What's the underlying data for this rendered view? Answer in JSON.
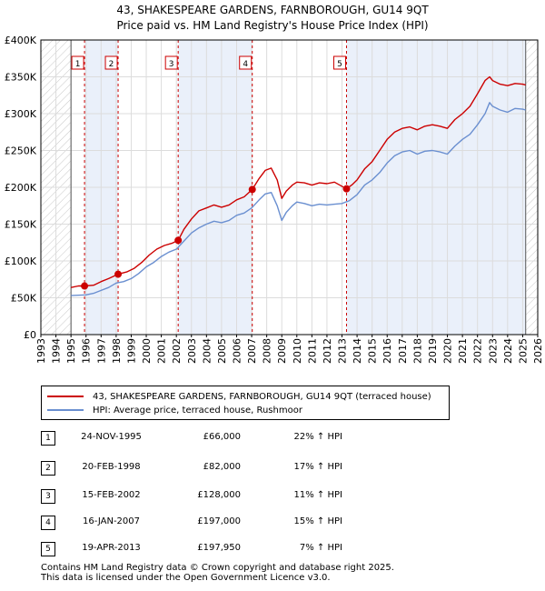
{
  "chart_data": {
    "type": "line",
    "title": "43, SHAKESPEARE GARDENS, FARNBOROUGH, GU14 9QT",
    "subtitle": "Price paid vs. HM Land Registry's House Price Index (HPI)",
    "xlim": [
      1993,
      2026
    ],
    "ylim": [
      0,
      400000
    ],
    "x_ticks": [
      1993,
      1994,
      1995,
      1996,
      1997,
      1998,
      1999,
      2000,
      2001,
      2002,
      2003,
      2004,
      2005,
      2006,
      2007,
      2008,
      2009,
      2010,
      2011,
      2012,
      2013,
      2014,
      2015,
      2016,
      2017,
      2018,
      2019,
      2020,
      2021,
      2022,
      2023,
      2024,
      2025,
      2026
    ],
    "y_ticks": [
      {
        "value": 0,
        "label": "£0"
      },
      {
        "value": 50000,
        "label": "£50K"
      },
      {
        "value": 100000,
        "label": "£100K"
      },
      {
        "value": 150000,
        "label": "£150K"
      },
      {
        "value": 200000,
        "label": "£200K"
      },
      {
        "value": 250000,
        "label": "£250K"
      },
      {
        "value": 300000,
        "label": "£300K"
      },
      {
        "value": 350000,
        "label": "£350K"
      },
      {
        "value": 400000,
        "label": "£400K"
      }
    ],
    "data_start": 1995.0,
    "data_end": 2025.2,
    "series": [
      {
        "name": "43, SHAKESPEARE GARDENS, FARNBOROUGH, GU14 9QT (terraced house)",
        "color": "#cc0000",
        "x": [
          1995.0,
          1995.5,
          1995.9,
          1996.5,
          1997.0,
          1997.5,
          1998.13,
          1998.7,
          1999.2,
          1999.7,
          2000.2,
          2000.7,
          2001.2,
          2001.7,
          2002.12,
          2002.5,
          2003.0,
          2003.5,
          2004.0,
          2004.5,
          2005.0,
          2005.5,
          2006.0,
          2006.5,
          2007.04,
          2007.5,
          2007.9,
          2008.3,
          2008.7,
          2009.0,
          2009.3,
          2009.7,
          2010.0,
          2010.5,
          2011.0,
          2011.5,
          2012.0,
          2012.5,
          2013.3,
          2013.7,
          2014.0,
          2014.5,
          2015.0,
          2015.5,
          2016.0,
          2016.5,
          2017.0,
          2017.5,
          2018.0,
          2018.5,
          2019.0,
          2019.5,
          2020.0,
          2020.5,
          2021.0,
          2021.5,
          2022.0,
          2022.5,
          2022.8,
          2023.0,
          2023.5,
          2024.0,
          2024.5,
          2025.0,
          2025.2
        ],
        "values": [
          64000,
          66000,
          66000,
          67000,
          72000,
          76000,
          82000,
          85000,
          90000,
          98000,
          108000,
          116000,
          121000,
          124000,
          128000,
          143000,
          157000,
          168000,
          172000,
          176000,
          173000,
          176000,
          183000,
          187000,
          197000,
          212000,
          223000,
          226000,
          210000,
          185000,
          195000,
          203000,
          207000,
          206000,
          203000,
          206000,
          205000,
          207000,
          197950,
          204000,
          210000,
          225000,
          235000,
          250000,
          265000,
          275000,
          280000,
          282000,
          278000,
          283000,
          285000,
          283000,
          280000,
          292000,
          300000,
          310000,
          327000,
          345000,
          350000,
          345000,
          340000,
          338000,
          341000,
          340000,
          339000
        ]
      },
      {
        "name": "HPI: Average price, terraced house, Rushmoor",
        "color": "#6a8fd0",
        "x": [
          1995.0,
          1995.5,
          1996.0,
          1996.5,
          1997.0,
          1997.5,
          1998.0,
          1998.5,
          1999.0,
          1999.5,
          2000.0,
          2000.5,
          2001.0,
          2001.5,
          2002.0,
          2002.5,
          2003.0,
          2003.5,
          2004.0,
          2004.5,
          2005.0,
          2005.5,
          2006.0,
          2006.5,
          2007.0,
          2007.5,
          2007.9,
          2008.3,
          2008.7,
          2009.0,
          2009.3,
          2009.7,
          2010.0,
          2010.5,
          2011.0,
          2011.5,
          2012.0,
          2012.5,
          2013.0,
          2013.5,
          2014.0,
          2014.5,
          2015.0,
          2015.5,
          2016.0,
          2016.5,
          2017.0,
          2017.5,
          2018.0,
          2018.5,
          2019.0,
          2019.5,
          2020.0,
          2020.5,
          2021.0,
          2021.5,
          2022.0,
          2022.5,
          2022.8,
          2023.0,
          2023.5,
          2024.0,
          2024.5,
          2025.0,
          2025.2
        ],
        "values": [
          53000,
          53500,
          54000,
          56000,
          60000,
          64000,
          70000,
          72000,
          76000,
          83000,
          92000,
          98000,
          106000,
          112000,
          116000,
          127000,
          138000,
          145000,
          150000,
          154000,
          152000,
          155000,
          162000,
          165000,
          172000,
          183000,
          191000,
          193000,
          175000,
          155000,
          166000,
          175000,
          180000,
          178000,
          175000,
          177000,
          176000,
          177000,
          178000,
          182000,
          190000,
          203000,
          210000,
          220000,
          233000,
          243000,
          248000,
          250000,
          245000,
          249000,
          250000,
          248000,
          245000,
          256000,
          265000,
          272000,
          285000,
          300000,
          315000,
          310000,
          305000,
          302000,
          307000,
          306000,
          305000
        ]
      }
    ],
    "sales": [
      {
        "num": "1",
        "x": 1995.9,
        "value": 66000,
        "date": "24-NOV-1995",
        "price": "£66,000",
        "hpi": "22% ↑ HPI"
      },
      {
        "num": "2",
        "x": 1998.13,
        "value": 82000,
        "date": "20-FEB-1998",
        "price": "£82,000",
        "hpi": "17% ↑ HPI"
      },
      {
        "num": "3",
        "x": 2002.12,
        "value": 128000,
        "date": "15-FEB-2002",
        "price": "£128,000",
        "hpi": "11% ↑ HPI"
      },
      {
        "num": "4",
        "x": 2007.04,
        "value": 197000,
        "date": "16-JAN-2007",
        "price": "£197,000",
        "hpi": "15% ↑ HPI"
      },
      {
        "num": "5",
        "x": 2013.3,
        "value": 197950,
        "date": "19-APR-2013",
        "price": "£197,950",
        "hpi": "7% ↑ HPI"
      }
    ]
  },
  "legend": {
    "property_label": "43, SHAKESPEARE GARDENS, FARNBOROUGH, GU14 9QT (terraced house)",
    "hpi_label": "HPI: Average price, terraced house, Rushmoor"
  },
  "footer": {
    "line1": "Contains HM Land Registry data © Crown copyright and database right 2025.",
    "line2": "This data is licensed under the Open Government Licence v3.0."
  }
}
